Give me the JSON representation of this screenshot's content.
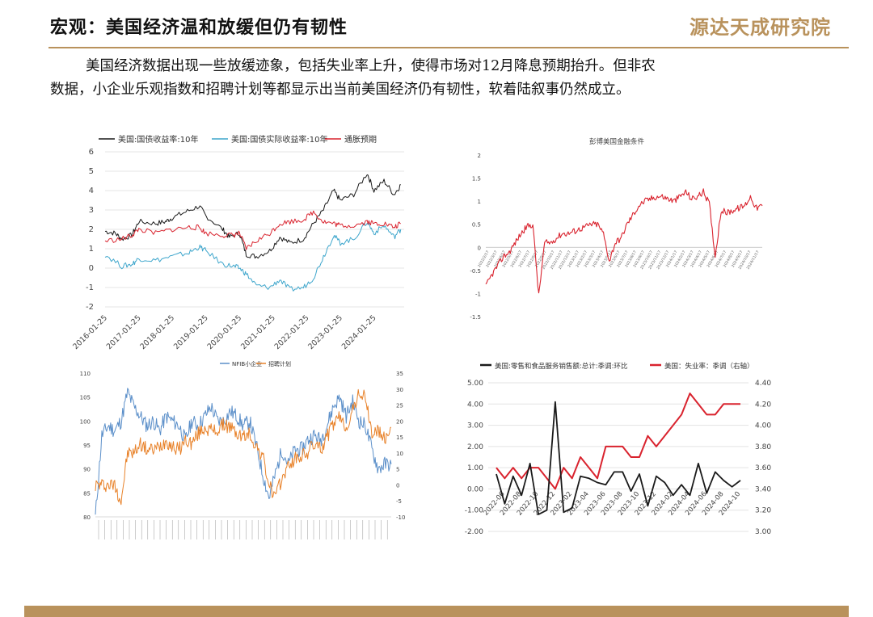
{
  "header": {
    "title": "宏观：美国经济温和放缓但仍有韧性",
    "logo": "源达天成研究院"
  },
  "paragraph": {
    "line1": "美国经济数据出现一些放缓迹象，包括失业率上升，使得市场对12月降息预期抬升。但非农",
    "line2": "数据，小企业乐观指数和招聘计划等都显示出当前美国经济仍有韧性，软着陆叙事仍然成立。"
  },
  "colors": {
    "accent": "#b9925c",
    "black": "#1a1a1a",
    "blue": "#3ea6cc",
    "red": "#d9232e",
    "orange": "#e8822a",
    "nfib_blue": "#5b8fc9"
  },
  "chart_data": [
    {
      "type": "line",
      "title": "",
      "legend": [
        "美国:国债收益率:10年",
        "美国:国债实际收益率:10年",
        "通胀预期"
      ],
      "legend_placement": "top",
      "ylim": [
        -2,
        6
      ],
      "yticks": [
        "-2",
        "-1",
        "0",
        "1",
        "2",
        "3",
        "4",
        "5",
        "6"
      ],
      "xticks": [
        "2016-01-25",
        "2017-01-25",
        "2018-01-25",
        "2019-01-25",
        "2020-01-25",
        "2021-01-25",
        "2022-01-25",
        "2023-01-25",
        "2024-01-25"
      ],
      "x_range": [
        2016.0,
        2024.9
      ],
      "series": [
        {
          "name": "美国:国债收益率:10年",
          "color": "#1a1a1a",
          "points": [
            [
              2016.0,
              1.9
            ],
            [
              2016.3,
              1.8
            ],
            [
              2016.5,
              1.5
            ],
            [
              2016.8,
              1.7
            ],
            [
              2017.0,
              2.4
            ],
            [
              2017.5,
              2.3
            ],
            [
              2017.8,
              2.4
            ],
            [
              2018.0,
              2.6
            ],
            [
              2018.4,
              2.9
            ],
            [
              2018.8,
              3.2
            ],
            [
              2019.0,
              2.7
            ],
            [
              2019.5,
              2.0
            ],
            [
              2019.7,
              1.6
            ],
            [
              2020.0,
              1.8
            ],
            [
              2020.2,
              0.7
            ],
            [
              2020.5,
              0.6
            ],
            [
              2020.9,
              0.9
            ],
            [
              2021.2,
              1.6
            ],
            [
              2021.5,
              1.3
            ],
            [
              2021.9,
              1.5
            ],
            [
              2022.2,
              2.3
            ],
            [
              2022.5,
              3.0
            ],
            [
              2022.8,
              4.0
            ],
            [
              2023.0,
              3.5
            ],
            [
              2023.4,
              3.8
            ],
            [
              2023.8,
              4.9
            ],
            [
              2024.0,
              4.0
            ],
            [
              2024.3,
              4.5
            ],
            [
              2024.6,
              3.8
            ],
            [
              2024.8,
              4.3
            ]
          ]
        },
        {
          "name": "美国:国债实际收益率:10年",
          "color": "#3ea6cc",
          "points": [
            [
              2016.0,
              0.7
            ],
            [
              2016.5,
              0.1
            ],
            [
              2016.8,
              0.2
            ],
            [
              2017.0,
              0.5
            ],
            [
              2017.5,
              0.4
            ],
            [
              2018.0,
              0.6
            ],
            [
              2018.5,
              0.8
            ],
            [
              2018.8,
              1.1
            ],
            [
              2019.0,
              0.9
            ],
            [
              2019.5,
              0.2
            ],
            [
              2019.8,
              0.1
            ],
            [
              2020.0,
              0.0
            ],
            [
              2020.2,
              -0.3
            ],
            [
              2020.5,
              -0.9
            ],
            [
              2020.9,
              -1.0
            ],
            [
              2021.2,
              -0.6
            ],
            [
              2021.5,
              -1.1
            ],
            [
              2021.9,
              -1.0
            ],
            [
              2022.2,
              -0.5
            ],
            [
              2022.5,
              0.6
            ],
            [
              2022.8,
              1.7
            ],
            [
              2023.0,
              1.3
            ],
            [
              2023.4,
              1.5
            ],
            [
              2023.8,
              2.4
            ],
            [
              2024.0,
              1.8
            ],
            [
              2024.3,
              2.2
            ],
            [
              2024.6,
              1.6
            ],
            [
              2024.8,
              2.0
            ]
          ]
        },
        {
          "name": "通胀预期",
          "color": "#d9232e",
          "points": [
            [
              2016.0,
              1.4
            ],
            [
              2016.5,
              1.5
            ],
            [
              2016.8,
              1.7
            ],
            [
              2017.0,
              2.0
            ],
            [
              2017.5,
              1.8
            ],
            [
              2018.0,
              2.0
            ],
            [
              2018.5,
              2.1
            ],
            [
              2018.8,
              2.1
            ],
            [
              2019.0,
              1.8
            ],
            [
              2019.5,
              1.7
            ],
            [
              2019.8,
              1.7
            ],
            [
              2020.0,
              1.8
            ],
            [
              2020.2,
              1.0
            ],
            [
              2020.5,
              1.4
            ],
            [
              2020.9,
              1.8
            ],
            [
              2021.2,
              2.3
            ],
            [
              2021.5,
              2.4
            ],
            [
              2021.9,
              2.5
            ],
            [
              2022.2,
              2.9
            ],
            [
              2022.5,
              2.4
            ],
            [
              2022.8,
              2.3
            ],
            [
              2023.0,
              2.2
            ],
            [
              2023.4,
              2.2
            ],
            [
              2023.8,
              2.4
            ],
            [
              2024.0,
              2.3
            ],
            [
              2024.3,
              2.3
            ],
            [
              2024.6,
              2.1
            ],
            [
              2024.8,
              2.3
            ]
          ]
        }
      ]
    },
    {
      "type": "line",
      "title": "彭博美国金融条件",
      "ylim": [
        -1.5,
        2
      ],
      "yticks": [
        "-1.5",
        "-1",
        "-0.5",
        "0",
        "0.5",
        "1",
        "1.5",
        "2"
      ],
      "xticks": [
        "2022/2/17",
        "2022/3/17",
        "2022/4/17",
        "2022/5/17",
        "2022/6/17",
        "2022/7/17",
        "2022/8/17",
        "2022/9/17",
        "2022/10/17",
        "2022/11/17",
        "2022/12/17",
        "2023/1/17",
        "2023/2/17",
        "2023/3/17",
        "2023/4/17",
        "2023/5/17",
        "2023/6/17",
        "2023/7/17",
        "2023/8/17",
        "2023/9/17",
        "2023/10/17",
        "2023/11/17",
        "2023/12/17",
        "2024/1/17",
        "2024/2/17",
        "2024/3/17",
        "2024/4/17",
        "2024/5/17",
        "2024/6/17",
        "2024/7/17",
        "2024/8/17",
        "2024/9/17",
        "2024/10/17",
        "2024/11/17"
      ],
      "series": [
        {
          "name": "",
          "color": "#d9232e",
          "values": [
            -0.85,
            -0.6,
            -0.4,
            -0.2,
            -0.1,
            0.1,
            0.3,
            0.45,
            0.5,
            -1.05,
            0.1,
            0.1,
            0.2,
            0.3,
            0.3,
            0.35,
            0.4,
            0.45,
            0.5,
            0.5,
            0.3,
            -0.3,
            0.1,
            0.2,
            0.5,
            0.7,
            0.9,
            1.0,
            1.05,
            1.1,
            1.1,
            1.05,
            1.0,
            1.1,
            1.2,
            1.05,
            1.1,
            1.2,
            0.95,
            -0.2,
            0.8,
            0.75,
            0.8,
            0.85,
            0.9,
            1.1,
            0.85,
            0.9
          ]
        }
      ]
    },
    {
      "type": "line",
      "title": "",
      "legend": [
        "NFIB小企业",
        "招聘计划"
      ],
      "legend_placement": "top",
      "ylim_left": [
        80,
        110
      ],
      "ylim_right": [
        -10,
        35
      ],
      "yticks_left": [
        "80",
        "85",
        "90",
        "95",
        "100",
        "105",
        "110"
      ],
      "yticks_right": [
        "-10",
        "-5",
        "0",
        "5",
        "10",
        "15",
        "20",
        "25",
        "30",
        "35"
      ],
      "series": [
        {
          "name": "NFIB小企业",
          "color": "#5b8fc9",
          "axis": "left",
          "values": [
            80,
            97,
            99,
            98,
            100,
            106,
            103,
            101,
            99,
            100,
            98,
            101,
            100,
            99,
            96,
            100,
            99,
            101,
            103,
            100,
            100,
            102,
            101,
            99,
            100,
            95,
            89,
            84,
            89,
            94,
            91,
            94,
            94,
            96,
            97,
            96,
            99,
            103,
            105,
            101,
            104,
            100,
            99,
            94,
            90,
            91,
            91
          ]
        },
        {
          "name": "招聘计划",
          "color": "#e8822a",
          "axis": "right",
          "values": [
            0,
            0,
            0,
            0,
            -5,
            10,
            10,
            13,
            11,
            11,
            12,
            14,
            12,
            11,
            14,
            13,
            16,
            18,
            17,
            17,
            19,
            18,
            16,
            15,
            16,
            12,
            9,
            0,
            -4,
            2,
            6,
            8,
            9,
            10,
            13,
            11,
            15,
            19,
            21,
            18,
            23,
            29,
            27,
            16,
            17,
            14,
            18
          ]
        }
      ]
    },
    {
      "type": "line",
      "title": "",
      "legend": [
        "美国:零售和食品服务销售额:总计:季调:环比",
        "美国：失业率：季调（右轴）"
      ],
      "legend_placement": "top",
      "ylim_left": [
        -2.0,
        5.0
      ],
      "ylim_right": [
        3.0,
        4.4
      ],
      "yticks_left": [
        "-2.00",
        "-1.00",
        "0.00",
        "1.00",
        "2.00",
        "3.00",
        "4.00",
        "5.00"
      ],
      "yticks_right": [
        "3.00",
        "3.20",
        "3.40",
        "3.60",
        "3.80",
        "4.00",
        "4.20",
        "4.40"
      ],
      "xticks": [
        "2022-06",
        "2022-08",
        "2022-10",
        "2022-12",
        "2023-02",
        "2023-04",
        "2023-06",
        "2023-08",
        "2023-10",
        "2023-12",
        "2024-02",
        "2024-04",
        "2024-06",
        "2024-08",
        "2024-10"
      ],
      "series": [
        {
          "name": "美国:零售和食品服务销售额:总计:季调:环比",
          "color": "#1a1a1a",
          "axis": "left",
          "x": [
            "2022-05",
            "2022-06",
            "2022-07",
            "2022-08",
            "2022-09",
            "2022-10",
            "2022-11",
            "2022-12",
            "2023-01",
            "2023-02",
            "2023-03",
            "2023-04",
            "2023-05",
            "2023-06",
            "2023-07",
            "2023-08",
            "2023-09",
            "2023-10",
            "2023-11",
            "2023-12",
            "2024-01",
            "2024-02",
            "2024-03",
            "2024-04",
            "2024-05",
            "2024-06",
            "2024-07",
            "2024-08",
            "2024-09",
            "2024-10"
          ],
          "values": [
            0.7,
            -0.7,
            0.6,
            -0.3,
            1.2,
            -1.2,
            -1.0,
            4.1,
            -1.1,
            -0.9,
            0.6,
            0.5,
            0.3,
            0.2,
            0.8,
            0.8,
            -0.1,
            0.7,
            -0.8,
            0.6,
            0.3,
            -0.3,
            0.2,
            -0.3,
            1.2,
            -0.2,
            0.8,
            0.4,
            0.1,
            0.4
          ]
        },
        {
          "name": "美国：失业率：季调（右轴）",
          "color": "#d9232e",
          "axis": "right",
          "x": [
            "2022-05",
            "2022-06",
            "2022-07",
            "2022-08",
            "2022-09",
            "2022-10",
            "2022-11",
            "2022-12",
            "2023-01",
            "2023-02",
            "2023-03",
            "2023-04",
            "2023-05",
            "2023-06",
            "2023-07",
            "2023-08",
            "2023-09",
            "2023-10",
            "2023-11",
            "2023-12",
            "2024-01",
            "2024-02",
            "2024-03",
            "2024-04",
            "2024-05",
            "2024-06",
            "2024-07",
            "2024-08",
            "2024-09",
            "2024-10"
          ],
          "values": [
            3.6,
            3.5,
            3.6,
            3.5,
            3.6,
            3.6,
            3.5,
            3.4,
            3.6,
            3.5,
            3.7,
            3.6,
            3.5,
            3.8,
            3.8,
            3.8,
            3.7,
            3.7,
            3.9,
            3.8,
            3.9,
            4.0,
            4.1,
            4.3,
            4.2,
            4.1,
            4.1,
            4.2,
            4.2,
            4.2
          ]
        }
      ]
    }
  ]
}
